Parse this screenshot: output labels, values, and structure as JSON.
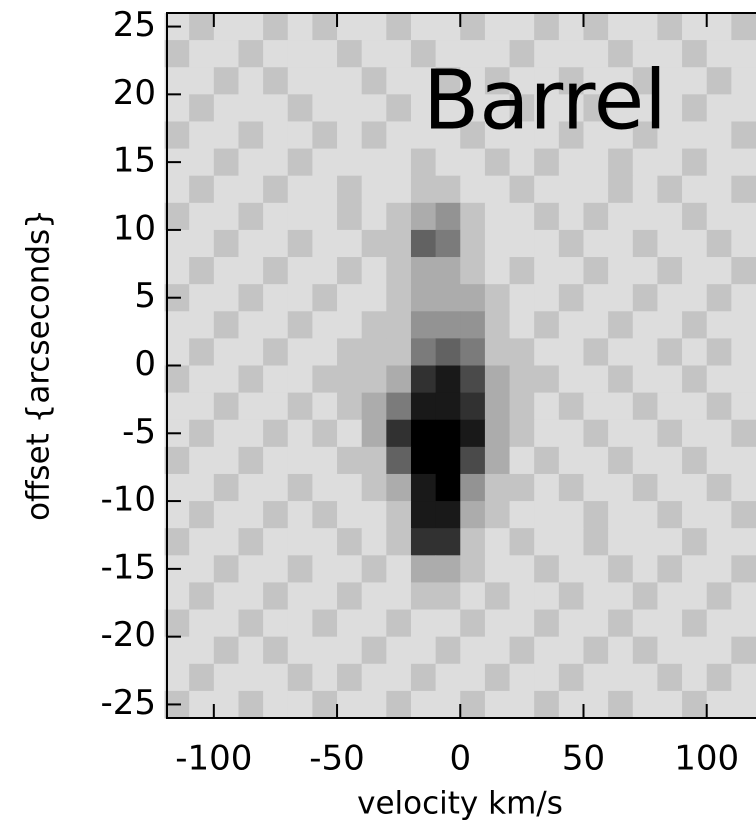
{
  "chart_data": {
    "type": "heatmap",
    "title": "Barrel",
    "xlabel": "velocity km/s",
    "ylabel": "offset {arcseconds}",
    "xlim": [
      -119,
      120
    ],
    "ylim": [
      -26,
      26
    ],
    "xticks": [
      -100,
      -50,
      0,
      50,
      100
    ],
    "yticks": [
      -25,
      -20,
      -15,
      -10,
      -5,
      0,
      5,
      10,
      15,
      20,
      25
    ],
    "x": [
      -115,
      -105,
      -95,
      -85,
      -75,
      -65,
      -55,
      -45,
      -35,
      -25,
      -15,
      -5,
      5,
      15,
      25,
      35,
      45,
      55,
      65,
      75,
      85,
      95,
      105,
      115
    ],
    "y": [
      25,
      23,
      21,
      19,
      17,
      15,
      13,
      11,
      9,
      7,
      5,
      3,
      1,
      -1,
      -3,
      -5,
      -7,
      -9,
      -11,
      -13,
      -15,
      -17,
      -19,
      -21,
      -23,
      -25
    ],
    "values": [
      [
        1,
        2,
        1,
        1,
        2,
        1,
        2,
        1,
        1,
        2,
        1,
        1,
        2,
        1,
        1,
        2,
        1,
        2,
        1,
        1,
        2,
        1,
        1,
        2
      ],
      [
        2,
        1,
        1,
        2,
        1,
        1,
        1,
        2,
        1,
        1,
        2,
        1,
        1,
        1,
        2,
        1,
        1,
        1,
        2,
        1,
        1,
        2,
        1,
        1
      ],
      [
        1,
        1,
        2,
        1,
        2,
        1,
        1,
        1,
        2,
        1,
        1,
        2,
        1,
        2,
        1,
        1,
        2,
        1,
        1,
        2,
        1,
        1,
        2,
        1
      ],
      [
        1,
        2,
        1,
        1,
        1,
        2,
        1,
        1,
        1,
        2,
        1,
        1,
        1,
        1,
        2,
        1,
        1,
        2,
        1,
        1,
        1,
        2,
        1,
        1
      ],
      [
        2,
        1,
        1,
        2,
        1,
        1,
        2,
        1,
        2,
        1,
        1,
        1,
        2,
        1,
        1,
        1,
        2,
        1,
        1,
        2,
        1,
        1,
        1,
        2
      ],
      [
        1,
        1,
        2,
        1,
        1,
        2,
        1,
        1,
        1,
        1,
        2,
        1,
        1,
        2,
        1,
        2,
        1,
        1,
        2,
        1,
        1,
        2,
        1,
        1
      ],
      [
        1,
        2,
        1,
        1,
        2,
        1,
        1,
        2,
        1,
        1,
        2,
        2,
        1,
        1,
        2,
        1,
        1,
        1,
        2,
        1,
        2,
        1,
        1,
        2
      ],
      [
        2,
        1,
        1,
        2,
        1,
        1,
        1,
        2,
        1,
        2,
        3,
        4,
        2,
        1,
        1,
        2,
        1,
        2,
        1,
        1,
        1,
        2,
        1,
        1
      ],
      [
        1,
        1,
        2,
        1,
        1,
        2,
        1,
        1,
        2,
        2,
        6,
        5,
        2,
        1,
        1,
        1,
        2,
        1,
        1,
        2,
        1,
        1,
        2,
        1
      ],
      [
        1,
        2,
        1,
        1,
        2,
        1,
        1,
        2,
        1,
        2,
        3,
        3,
        2,
        1,
        2,
        1,
        1,
        2,
        1,
        1,
        2,
        1,
        1,
        2
      ],
      [
        2,
        1,
        1,
        2,
        1,
        1,
        2,
        1,
        1,
        2,
        3,
        3,
        3,
        2,
        1,
        1,
        2,
        1,
        1,
        2,
        1,
        1,
        2,
        1
      ],
      [
        1,
        1,
        2,
        1,
        1,
        2,
        1,
        1,
        2,
        2,
        4,
        4,
        4,
        2,
        1,
        2,
        1,
        1,
        2,
        1,
        1,
        2,
        1,
        1
      ],
      [
        1,
        2,
        1,
        1,
        2,
        1,
        1,
        2,
        2,
        2,
        5,
        6,
        5,
        2,
        2,
        1,
        1,
        2,
        1,
        1,
        2,
        1,
        2,
        1
      ],
      [
        2,
        1,
        1,
        2,
        1,
        1,
        2,
        2,
        2,
        3,
        8,
        9,
        7,
        3,
        2,
        2,
        1,
        1,
        2,
        1,
        1,
        2,
        1,
        1
      ],
      [
        1,
        1,
        2,
        1,
        1,
        2,
        1,
        2,
        3,
        5,
        9,
        9,
        8,
        3,
        2,
        1,
        2,
        1,
        1,
        2,
        1,
        1,
        2,
        1
      ],
      [
        1,
        2,
        1,
        1,
        2,
        1,
        2,
        1,
        3,
        8,
        10,
        10,
        9,
        3,
        2,
        1,
        1,
        2,
        1,
        1,
        2,
        1,
        1,
        2
      ],
      [
        2,
        1,
        1,
        2,
        1,
        1,
        1,
        2,
        2,
        6,
        10,
        10,
        7,
        3,
        1,
        2,
        1,
        1,
        2,
        1,
        1,
        2,
        1,
        1
      ],
      [
        1,
        1,
        2,
        1,
        1,
        2,
        1,
        1,
        2,
        3,
        9,
        10,
        4,
        2,
        2,
        1,
        2,
        1,
        1,
        2,
        1,
        1,
        2,
        1
      ],
      [
        1,
        2,
        1,
        1,
        2,
        1,
        2,
        1,
        1,
        2,
        9,
        9,
        3,
        2,
        1,
        1,
        1,
        2,
        1,
        1,
        2,
        1,
        1,
        2
      ],
      [
        2,
        1,
        1,
        2,
        1,
        1,
        1,
        2,
        1,
        2,
        8,
        8,
        2,
        1,
        2,
        1,
        1,
        2,
        1,
        1,
        1,
        2,
        1,
        1
      ],
      [
        1,
        1,
        2,
        1,
        1,
        2,
        1,
        1,
        2,
        1,
        3,
        3,
        2,
        1,
        1,
        2,
        1,
        1,
        2,
        1,
        2,
        1,
        1,
        2
      ],
      [
        1,
        2,
        1,
        1,
        2,
        1,
        1,
        2,
        1,
        1,
        2,
        2,
        1,
        2,
        1,
        1,
        2,
        1,
        1,
        2,
        1,
        1,
        2,
        1
      ],
      [
        2,
        1,
        1,
        2,
        1,
        1,
        2,
        1,
        1,
        2,
        1,
        1,
        2,
        1,
        1,
        2,
        1,
        1,
        2,
        1,
        1,
        2,
        1,
        1
      ],
      [
        1,
        1,
        2,
        1,
        2,
        1,
        1,
        1,
        2,
        1,
        1,
        2,
        1,
        1,
        2,
        1,
        1,
        2,
        1,
        2,
        1,
        1,
        1,
        2
      ],
      [
        1,
        2,
        1,
        1,
        1,
        2,
        1,
        2,
        1,
        1,
        2,
        1,
        1,
        2,
        1,
        1,
        2,
        1,
        1,
        1,
        2,
        1,
        2,
        1
      ],
      [
        2,
        1,
        1,
        2,
        1,
        1,
        2,
        1,
        1,
        2,
        1,
        1,
        2,
        1,
        1,
        2,
        1,
        1,
        2,
        1,
        1,
        2,
        1,
        1
      ]
    ]
  }
}
